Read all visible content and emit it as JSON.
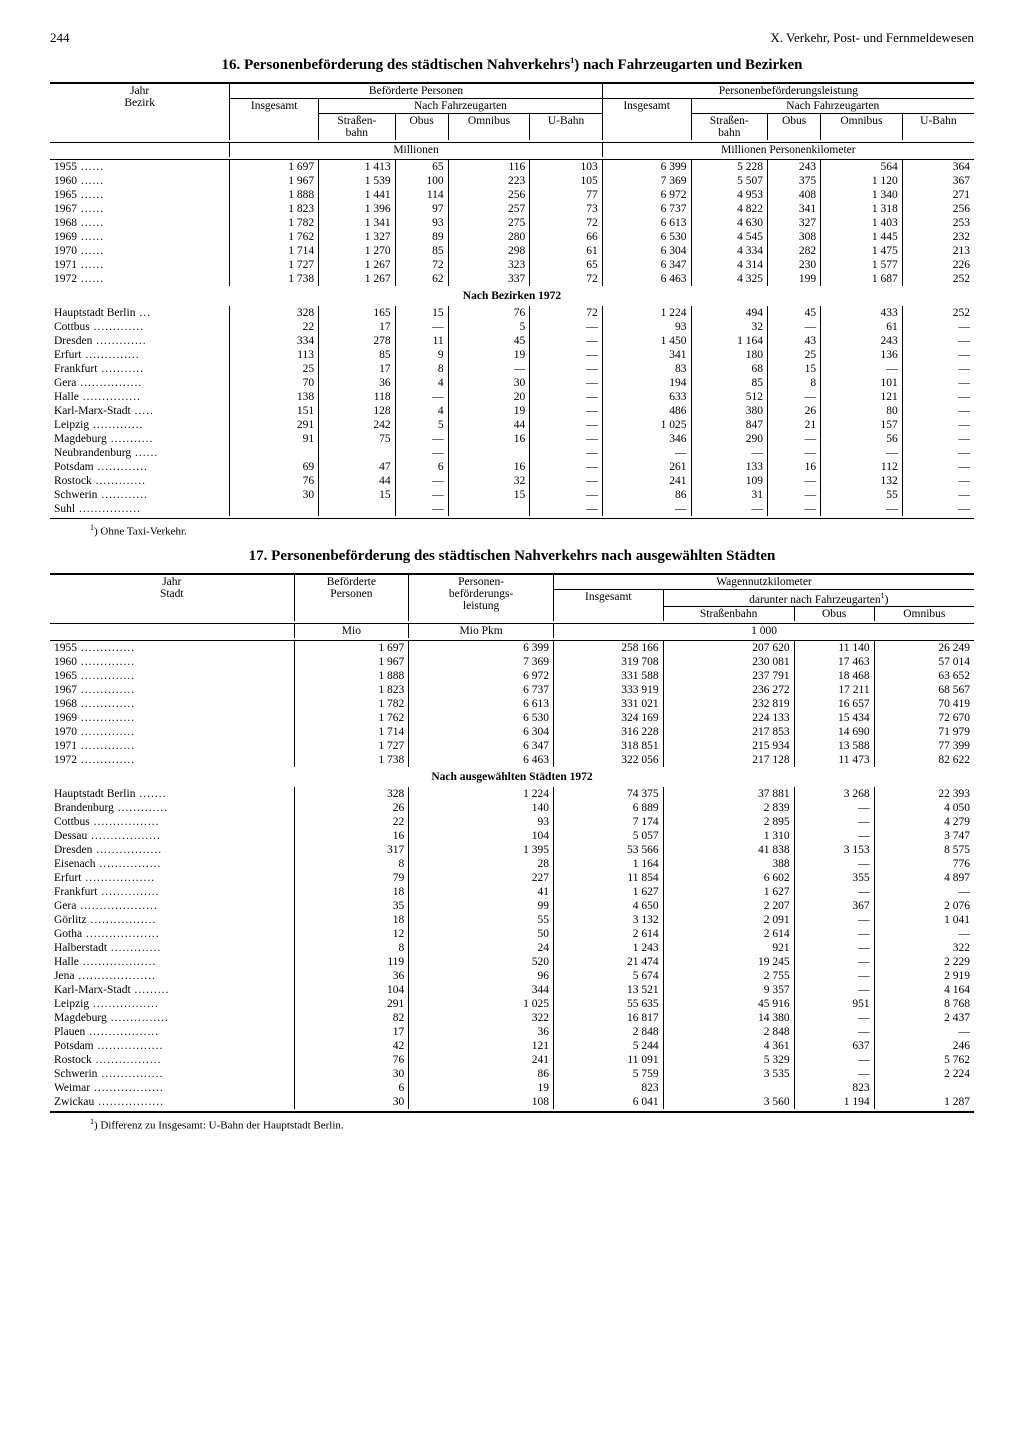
{
  "page": {
    "number": "244",
    "chapter": "X. Verkehr, Post- und Fernmeldewesen"
  },
  "table16": {
    "title": "16. Personenbeförderung des städtischen Nahverkehrs¹) nach Fahrzeugarten und Bezirken",
    "colgroups": {
      "left": "Beförderte Personen",
      "right": "Personenbeförderungsleistung",
      "sub": "Nach Fahrzeugarten",
      "rowhead": "Jahr\nBezirk",
      "cols": [
        "Insgesamt",
        "Straßen-\nbahn",
        "Obus",
        "Omnibus",
        "U-Bahn"
      ]
    },
    "units": {
      "left": "Millionen",
      "right": "Millionen Personenkilometer"
    },
    "years": [
      {
        "y": "1955",
        "v": [
          "1 697",
          "1 413",
          "65",
          "116",
          "103",
          "6 399",
          "5 228",
          "243",
          "564",
          "364"
        ]
      },
      {
        "y": "1960",
        "v": [
          "1 967",
          "1 539",
          "100",
          "223",
          "105",
          "7 369",
          "5 507",
          "375",
          "1 120",
          "367"
        ]
      },
      {
        "y": "1965",
        "v": [
          "1 888",
          "1 441",
          "114",
          "256",
          "77",
          "6 972",
          "4 953",
          "408",
          "1 340",
          "271"
        ]
      },
      {
        "y": "1967",
        "v": [
          "1 823",
          "1 396",
          "97",
          "257",
          "73",
          "6 737",
          "4 822",
          "341",
          "1 318",
          "256"
        ]
      },
      {
        "y": "1968",
        "v": [
          "1 782",
          "1 341",
          "93",
          "275",
          "72",
          "6 613",
          "4 630",
          "327",
          "1 403",
          "253"
        ]
      },
      {
        "y": "1969",
        "v": [
          "1 762",
          "1 327",
          "89",
          "280",
          "66",
          "6 530",
          "4 545",
          "308",
          "1 445",
          "232"
        ]
      },
      {
        "y": "1970",
        "v": [
          "1 714",
          "1 270",
          "85",
          "298",
          "61",
          "6 304",
          "4 334",
          "282",
          "1 475",
          "213"
        ]
      },
      {
        "y": "1971",
        "v": [
          "1 727",
          "1 267",
          "72",
          "323",
          "65",
          "6 347",
          "4 314",
          "230",
          "1 577",
          "226"
        ]
      },
      {
        "y": "1972",
        "v": [
          "1 738",
          "1 267",
          "62",
          "337",
          "72",
          "6 463",
          "4 325",
          "199",
          "1 687",
          "252"
        ]
      }
    ],
    "section": "Nach Bezirken 1972",
    "districts": [
      {
        "n": "Hauptstadt Berlin",
        "v": [
          "328",
          "165",
          "15",
          "76",
          "72",
          "1 224",
          "494",
          "45",
          "433",
          "252"
        ]
      },
      {
        "n": "Cottbus",
        "v": [
          "22",
          "17",
          "—",
          "5",
          "—",
          "93",
          "32",
          "—",
          "61",
          "—"
        ]
      },
      {
        "n": "Dresden",
        "v": [
          "334",
          "278",
          "11",
          "45",
          "—",
          "1 450",
          "1 164",
          "43",
          "243",
          "—"
        ]
      },
      {
        "n": "Erfurt",
        "v": [
          "113",
          "85",
          "9",
          "19",
          "—",
          "341",
          "180",
          "25",
          "136",
          "—"
        ]
      },
      {
        "n": "Frankfurt",
        "v": [
          "25",
          "17",
          "8",
          "—",
          "—",
          "83",
          "68",
          "15",
          "—",
          "—"
        ]
      },
      {
        "n": "Gera",
        "v": [
          "70",
          "36",
          "4",
          "30",
          "—",
          "194",
          "85",
          "8",
          "101",
          "—"
        ]
      },
      {
        "n": "Halle",
        "v": [
          "138",
          "118",
          "—",
          "20",
          "—",
          "633",
          "512",
          "—",
          "121",
          "—"
        ]
      },
      {
        "n": "Karl-Marx-Stadt",
        "v": [
          "151",
          "128",
          "4",
          "19",
          "—",
          "486",
          "380",
          "26",
          "80",
          "—"
        ]
      },
      {
        "n": "Leipzig",
        "v": [
          "291",
          "242",
          "5",
          "44",
          "—",
          "1 025",
          "847",
          "21",
          "157",
          "—"
        ]
      },
      {
        "n": "Magdeburg",
        "v": [
          "91",
          "75",
          "—",
          "16",
          "—",
          "346",
          "290",
          "—",
          "56",
          "—"
        ]
      },
      {
        "n": "Neubrandenburg",
        "v": [
          "",
          "",
          "—",
          "",
          "—",
          "—",
          "—",
          "—",
          "—",
          "—"
        ]
      },
      {
        "n": "Potsdam",
        "v": [
          "69",
          "47",
          "6",
          "16",
          "—",
          "261",
          "133",
          "16",
          "112",
          "—"
        ]
      },
      {
        "n": "Rostock",
        "v": [
          "76",
          "44",
          "—",
          "32",
          "—",
          "241",
          "109",
          "—",
          "132",
          "—"
        ]
      },
      {
        "n": "Schwerin",
        "v": [
          "30",
          "15",
          "—",
          "15",
          "—",
          "86",
          "31",
          "—",
          "55",
          "—"
        ]
      },
      {
        "n": "Suhl",
        "v": [
          "",
          "",
          "—",
          "",
          "—",
          "—",
          "—",
          "—",
          "—",
          "—"
        ]
      }
    ],
    "footnote": "¹) Ohne Taxi-Verkehr."
  },
  "table17": {
    "title": "17. Personenbeförderung des städtischen Nahverkehrs nach ausgewählten Städten",
    "headers": {
      "rowhead": "Jahr\nStadt",
      "c1": "Beförderte\nPersonen",
      "c2": "Personen-\nbeförderungs-\nleistung",
      "grp": "Wagennutzkilometer",
      "c3": "Insgesamt",
      "subgrp": "darunter nach Fahrzeugarten¹)",
      "c4": "Straßenbahn",
      "c5": "Obus",
      "c6": "Omnibus"
    },
    "units": {
      "c1": "Mio",
      "c2": "Mio Pkm",
      "right": "1 000"
    },
    "years": [
      {
        "y": "1955",
        "v": [
          "1 697",
          "6 399",
          "258 166",
          "207 620",
          "11 140",
          "26 249"
        ]
      },
      {
        "y": "1960",
        "v": [
          "1 967",
          "7 369",
          "319 708",
          "230 081",
          "17 463",
          "57 014"
        ]
      },
      {
        "y": "1965",
        "v": [
          "1 888",
          "6 972",
          "331 588",
          "237 791",
          "18 468",
          "63 652"
        ]
      },
      {
        "y": "1967",
        "v": [
          "1 823",
          "6 737",
          "333 919",
          "236 272",
          "17 211",
          "68 567"
        ]
      },
      {
        "y": "1968",
        "v": [
          "1 782",
          "6 613",
          "331 021",
          "232 819",
          "16 657",
          "70 419"
        ]
      },
      {
        "y": "1969",
        "v": [
          "1 762",
          "6 530",
          "324 169",
          "224 133",
          "15 434",
          "72 670"
        ]
      },
      {
        "y": "1970",
        "v": [
          "1 714",
          "6 304",
          "316 228",
          "217 853",
          "14 690",
          "71 979"
        ]
      },
      {
        "y": "1971",
        "v": [
          "1 727",
          "6 347",
          "318 851",
          "215 934",
          "13 588",
          "77 399"
        ]
      },
      {
        "y": "1972",
        "v": [
          "1 738",
          "6 463",
          "322 056",
          "217 128",
          "11 473",
          "82 622"
        ]
      }
    ],
    "section": "Nach ausgewählten Städten 1972",
    "cities": [
      {
        "n": "Hauptstadt Berlin",
        "v": [
          "328",
          "1 224",
          "74 375",
          "37 881",
          "3 268",
          "22 393"
        ]
      },
      {
        "n": "Brandenburg",
        "v": [
          "26",
          "140",
          "6 889",
          "2 839",
          "—",
          "4 050"
        ]
      },
      {
        "n": "Cottbus",
        "v": [
          "22",
          "93",
          "7 174",
          "2 895",
          "—",
          "4 279"
        ]
      },
      {
        "n": "Dessau",
        "v": [
          "16",
          "104",
          "5 057",
          "1 310",
          "—",
          "3 747"
        ]
      },
      {
        "n": "Dresden",
        "v": [
          "317",
          "1 395",
          "53 566",
          "41 838",
          "3 153",
          "8 575"
        ]
      },
      {
        "n": "Eisenach",
        "v": [
          "8",
          "28",
          "1 164",
          "388",
          "—",
          "776"
        ]
      },
      {
        "n": "Erfurt",
        "v": [
          "79",
          "227",
          "11 854",
          "6 602",
          "355",
          "4 897"
        ]
      },
      {
        "n": "Frankfurt",
        "v": [
          "18",
          "41",
          "1 627",
          "1 627",
          "—",
          "—"
        ]
      },
      {
        "n": "Gera",
        "v": [
          "35",
          "99",
          "4 650",
          "2 207",
          "367",
          "2 076"
        ]
      },
      {
        "n": "Görlitz",
        "v": [
          "18",
          "55",
          "3 132",
          "2 091",
          "—",
          "1 041"
        ]
      },
      {
        "n": "Gotha",
        "v": [
          "12",
          "50",
          "2 614",
          "2 614",
          "—",
          "—"
        ]
      },
      {
        "n": "Halberstadt",
        "v": [
          "8",
          "24",
          "1 243",
          "921",
          "—",
          "322"
        ]
      },
      {
        "n": "Halle",
        "v": [
          "119",
          "520",
          "21 474",
          "19 245",
          "—",
          "2 229"
        ]
      },
      {
        "n": "Jena",
        "v": [
          "36",
          "96",
          "5 674",
          "2 755",
          "—",
          "2 919"
        ]
      },
      {
        "n": "Karl-Marx-Stadt",
        "v": [
          "104",
          "344",
          "13 521",
          "9 357",
          "—",
          "4 164"
        ]
      },
      {
        "n": "Leipzig",
        "v": [
          "291",
          "1 025",
          "55 635",
          "45 916",
          "951",
          "8 768"
        ]
      },
      {
        "n": "Magdeburg",
        "v": [
          "82",
          "322",
          "16 817",
          "14 380",
          "—",
          "2 437"
        ]
      },
      {
        "n": "Plauen",
        "v": [
          "17",
          "36",
          "2 848",
          "2 848",
          "—",
          "—"
        ]
      },
      {
        "n": "Potsdam",
        "v": [
          "42",
          "121",
          "5 244",
          "4 361",
          "637",
          "246"
        ]
      },
      {
        "n": "Rostock",
        "v": [
          "76",
          "241",
          "11 091",
          "5 329",
          "—",
          "5 762"
        ]
      },
      {
        "n": "Schwerin",
        "v": [
          "30",
          "86",
          "5 759",
          "3 535",
          "—",
          "2 224"
        ]
      },
      {
        "n": "Weimar",
        "v": [
          "6",
          "19",
          "823",
          "",
          "823",
          ""
        ]
      },
      {
        "n": "Zwickau",
        "v": [
          "30",
          "108",
          "6 041",
          "3 560",
          "1 194",
          "1 287"
        ]
      }
    ],
    "footnote": "¹) Differenz zu Insgesamt: U-Bahn der Hauptstadt Berlin."
  }
}
